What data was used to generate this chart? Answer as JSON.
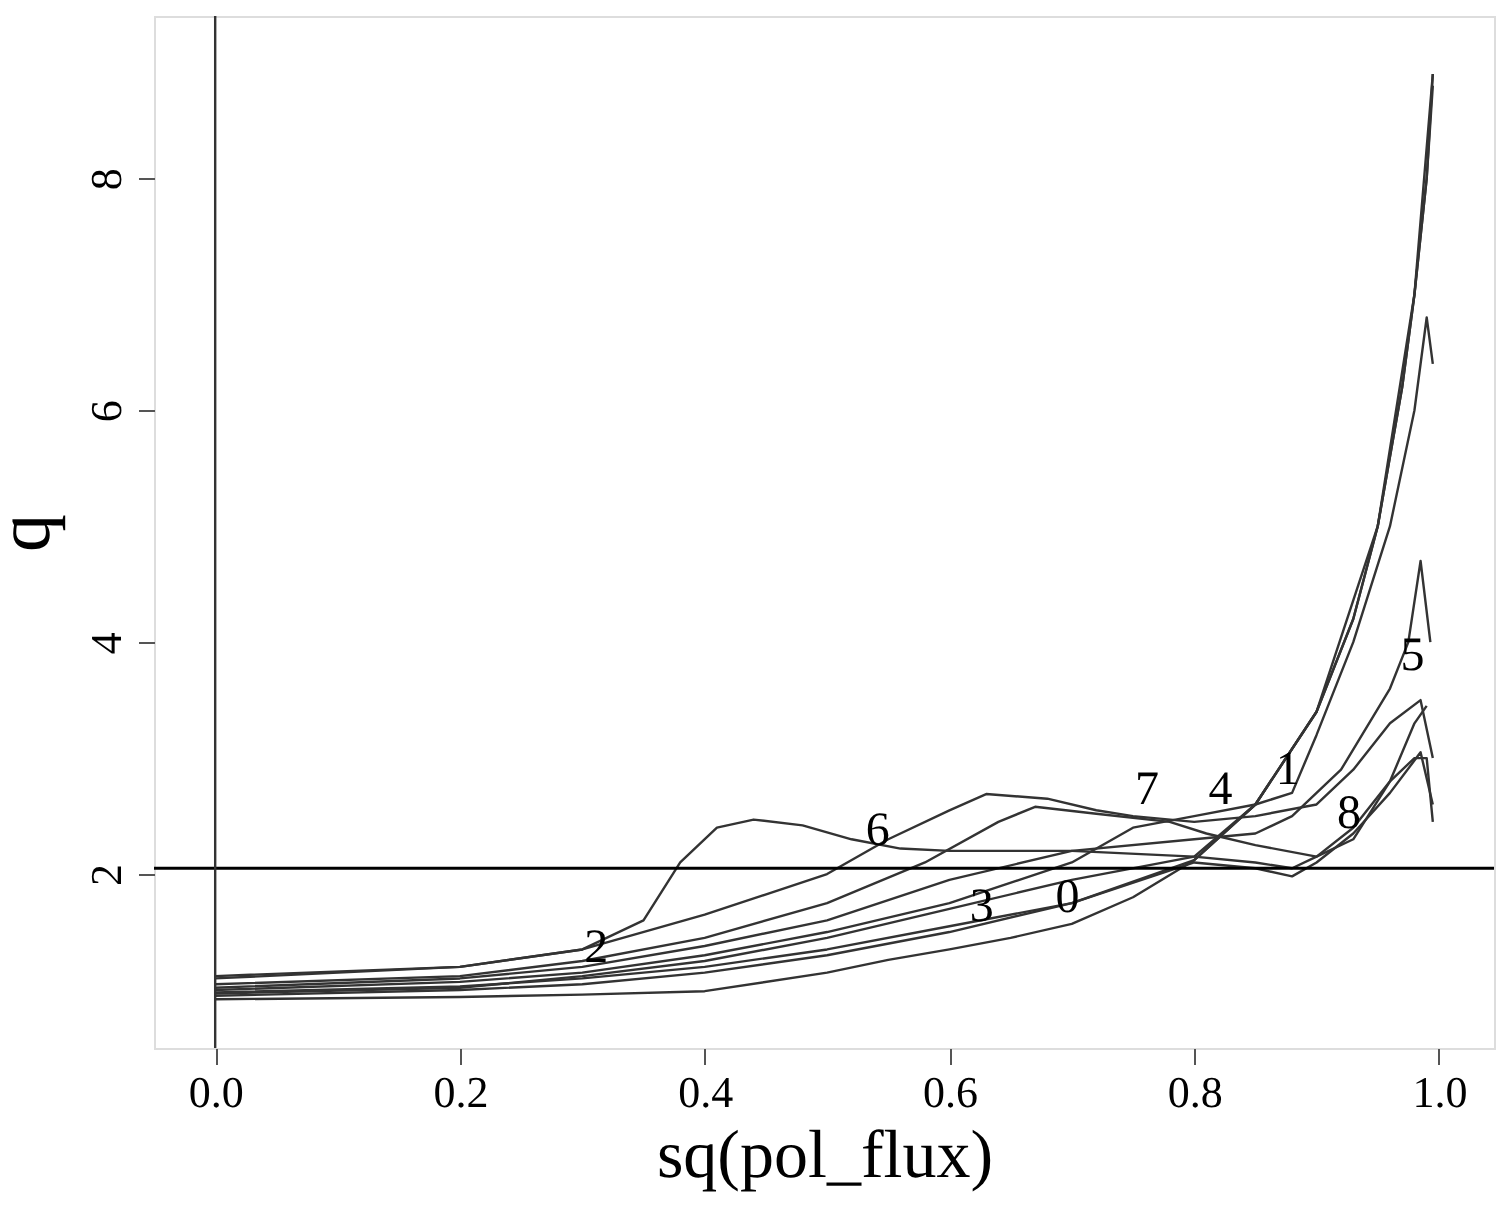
{
  "chart_data": {
    "type": "line",
    "xlabel": "sq(pol_flux)",
    "ylabel": "q",
    "xlim": [
      -0.05,
      1.045
    ],
    "ylim": [
      0.5,
      9.4
    ],
    "xticks": [
      {
        "value": 0,
        "label": "0.0"
      },
      0.2,
      0.4,
      0.6,
      0.8,
      {
        "value": 1,
        "label": "1.0"
      }
    ],
    "yticks": [
      2,
      4,
      6,
      8
    ],
    "grid": false,
    "line_style": "solid",
    "series": [
      {
        "color": "#333333",
        "x": [
          0,
          0.2,
          0.3,
          0.4,
          0.5,
          0.55,
          0.6,
          0.65,
          0.7,
          0.75,
          0.8,
          0.85,
          0.9,
          0.93,
          0.95,
          0.97,
          0.98,
          0.99,
          0.995
        ],
        "values": [
          0.92,
          0.94,
          0.96,
          0.99,
          1.15,
          1.26,
          1.35,
          1.45,
          1.57,
          1.8,
          2.12,
          2.6,
          3.4,
          4.2,
          5.0,
          6.2,
          7.0,
          8.0,
          8.9
        ]
      },
      {
        "color": "#333333",
        "x": [
          0,
          0.2,
          0.3,
          0.4,
          0.5,
          0.6,
          0.7,
          0.75,
          0.8,
          0.85,
          0.88,
          0.9,
          0.93,
          0.96,
          0.98,
          0.99,
          0.995
        ],
        "values": [
          1.0,
          1.07,
          1.15,
          1.3,
          1.5,
          1.75,
          2.1,
          2.4,
          2.5,
          2.6,
          2.7,
          3.2,
          4.0,
          5.0,
          6.0,
          6.8,
          6.4
        ]
      },
      {
        "color": "#333333",
        "x": [
          0,
          0.2,
          0.3,
          0.4,
          0.5,
          0.6,
          0.7,
          0.8,
          0.85,
          0.9,
          0.95,
          0.98,
          0.995
        ],
        "values": [
          0.97,
          1.02,
          1.12,
          1.25,
          1.45,
          1.7,
          1.95,
          2.15,
          2.6,
          3.4,
          5.0,
          7.0,
          8.9
        ]
      },
      {
        "color": "#333333",
        "x": [
          0,
          0.2,
          0.3,
          0.4,
          0.5,
          0.6,
          0.7,
          0.8,
          0.85,
          0.9,
          0.93,
          0.95,
          0.97,
          0.98,
          0.99,
          0.995
        ],
        "values": [
          0.98,
          1.03,
          1.1,
          1.2,
          1.35,
          1.55,
          1.75,
          2.12,
          2.6,
          3.4,
          4.2,
          5.0,
          6.2,
          7.0,
          8.0,
          8.8
        ]
      },
      {
        "color": "#333333",
        "x": [
          0,
          0.2,
          0.3,
          0.4,
          0.5,
          0.58,
          0.64,
          0.67,
          0.72,
          0.78,
          0.81,
          0.85,
          0.9,
          0.93,
          0.96,
          0.98,
          0.99
        ],
        "values": [
          1.05,
          1.12,
          1.25,
          1.45,
          1.75,
          2.1,
          2.45,
          2.58,
          2.52,
          2.45,
          2.35,
          2.25,
          2.15,
          2.3,
          2.8,
          3.3,
          3.45
        ]
      },
      {
        "color": "#333333",
        "x": [
          0,
          0.2,
          0.3,
          0.4,
          0.5,
          0.6,
          0.7,
          0.8,
          0.85,
          0.88,
          0.92,
          0.96,
          0.975,
          0.985,
          0.993
        ],
        "values": [
          1.02,
          1.1,
          1.2,
          1.38,
          1.6,
          1.95,
          2.2,
          2.3,
          2.35,
          2.5,
          2.9,
          3.6,
          4.0,
          4.7,
          4.0
        ]
      },
      {
        "color": "#333333",
        "x": [
          0,
          0.2,
          0.3,
          0.35,
          0.38,
          0.41,
          0.44,
          0.48,
          0.52,
          0.56,
          0.6,
          0.7,
          0.8,
          0.85,
          0.88,
          0.9,
          0.93,
          0.96,
          0.98,
          0.99,
          0.995
        ],
        "values": [
          1.12,
          1.2,
          1.35,
          1.6,
          2.1,
          2.4,
          2.47,
          2.42,
          2.3,
          2.22,
          2.2,
          2.2,
          2.15,
          2.1,
          2.05,
          2.15,
          2.4,
          2.8,
          3.0,
          3.0,
          2.45
        ]
      },
      {
        "color": "#333333",
        "x": [
          0,
          0.2,
          0.3,
          0.4,
          0.5,
          0.55,
          0.6,
          0.63,
          0.68,
          0.72,
          0.75,
          0.8,
          0.85,
          0.9,
          0.93,
          0.96,
          0.985,
          0.995
        ],
        "values": [
          1.1,
          1.2,
          1.35,
          1.65,
          2.0,
          2.3,
          2.55,
          2.69,
          2.65,
          2.55,
          2.5,
          2.45,
          2.5,
          2.6,
          2.9,
          3.3,
          3.5,
          3.0
        ]
      },
      {
        "color": "#333333",
        "x": [
          0,
          0.2,
          0.3,
          0.4,
          0.5,
          0.6,
          0.7,
          0.8,
          0.85,
          0.88,
          0.9,
          0.93,
          0.96,
          0.985,
          0.995
        ],
        "values": [
          0.95,
          1.0,
          1.05,
          1.15,
          1.3,
          1.5,
          1.75,
          2.1,
          2.05,
          1.98,
          2.1,
          2.35,
          2.7,
          3.05,
          2.6
        ]
      }
    ],
    "ref_lines": [
      {
        "axis": "y",
        "value": 2.05,
        "color": "#000000"
      },
      {
        "axis": "x",
        "value": 0,
        "color": "#333333"
      }
    ],
    "annotations": [
      {
        "text": "0",
        "x": 0.685,
        "y": 1.57
      },
      {
        "text": "1",
        "x": 0.865,
        "y": 2.67
      },
      {
        "text": "2",
        "x": 0.3,
        "y": 1.14
      },
      {
        "text": "3",
        "x": 0.615,
        "y": 1.49
      },
      {
        "text": "4",
        "x": 0.81,
        "y": 2.5
      },
      {
        "text": "5",
        "x": 0.967,
        "y": 3.66
      },
      {
        "text": "6",
        "x": 0.53,
        "y": 2.15
      },
      {
        "text": "7",
        "x": 0.75,
        "y": 2.5
      },
      {
        "text": "8",
        "x": 0.915,
        "y": 2.29
      }
    ]
  }
}
